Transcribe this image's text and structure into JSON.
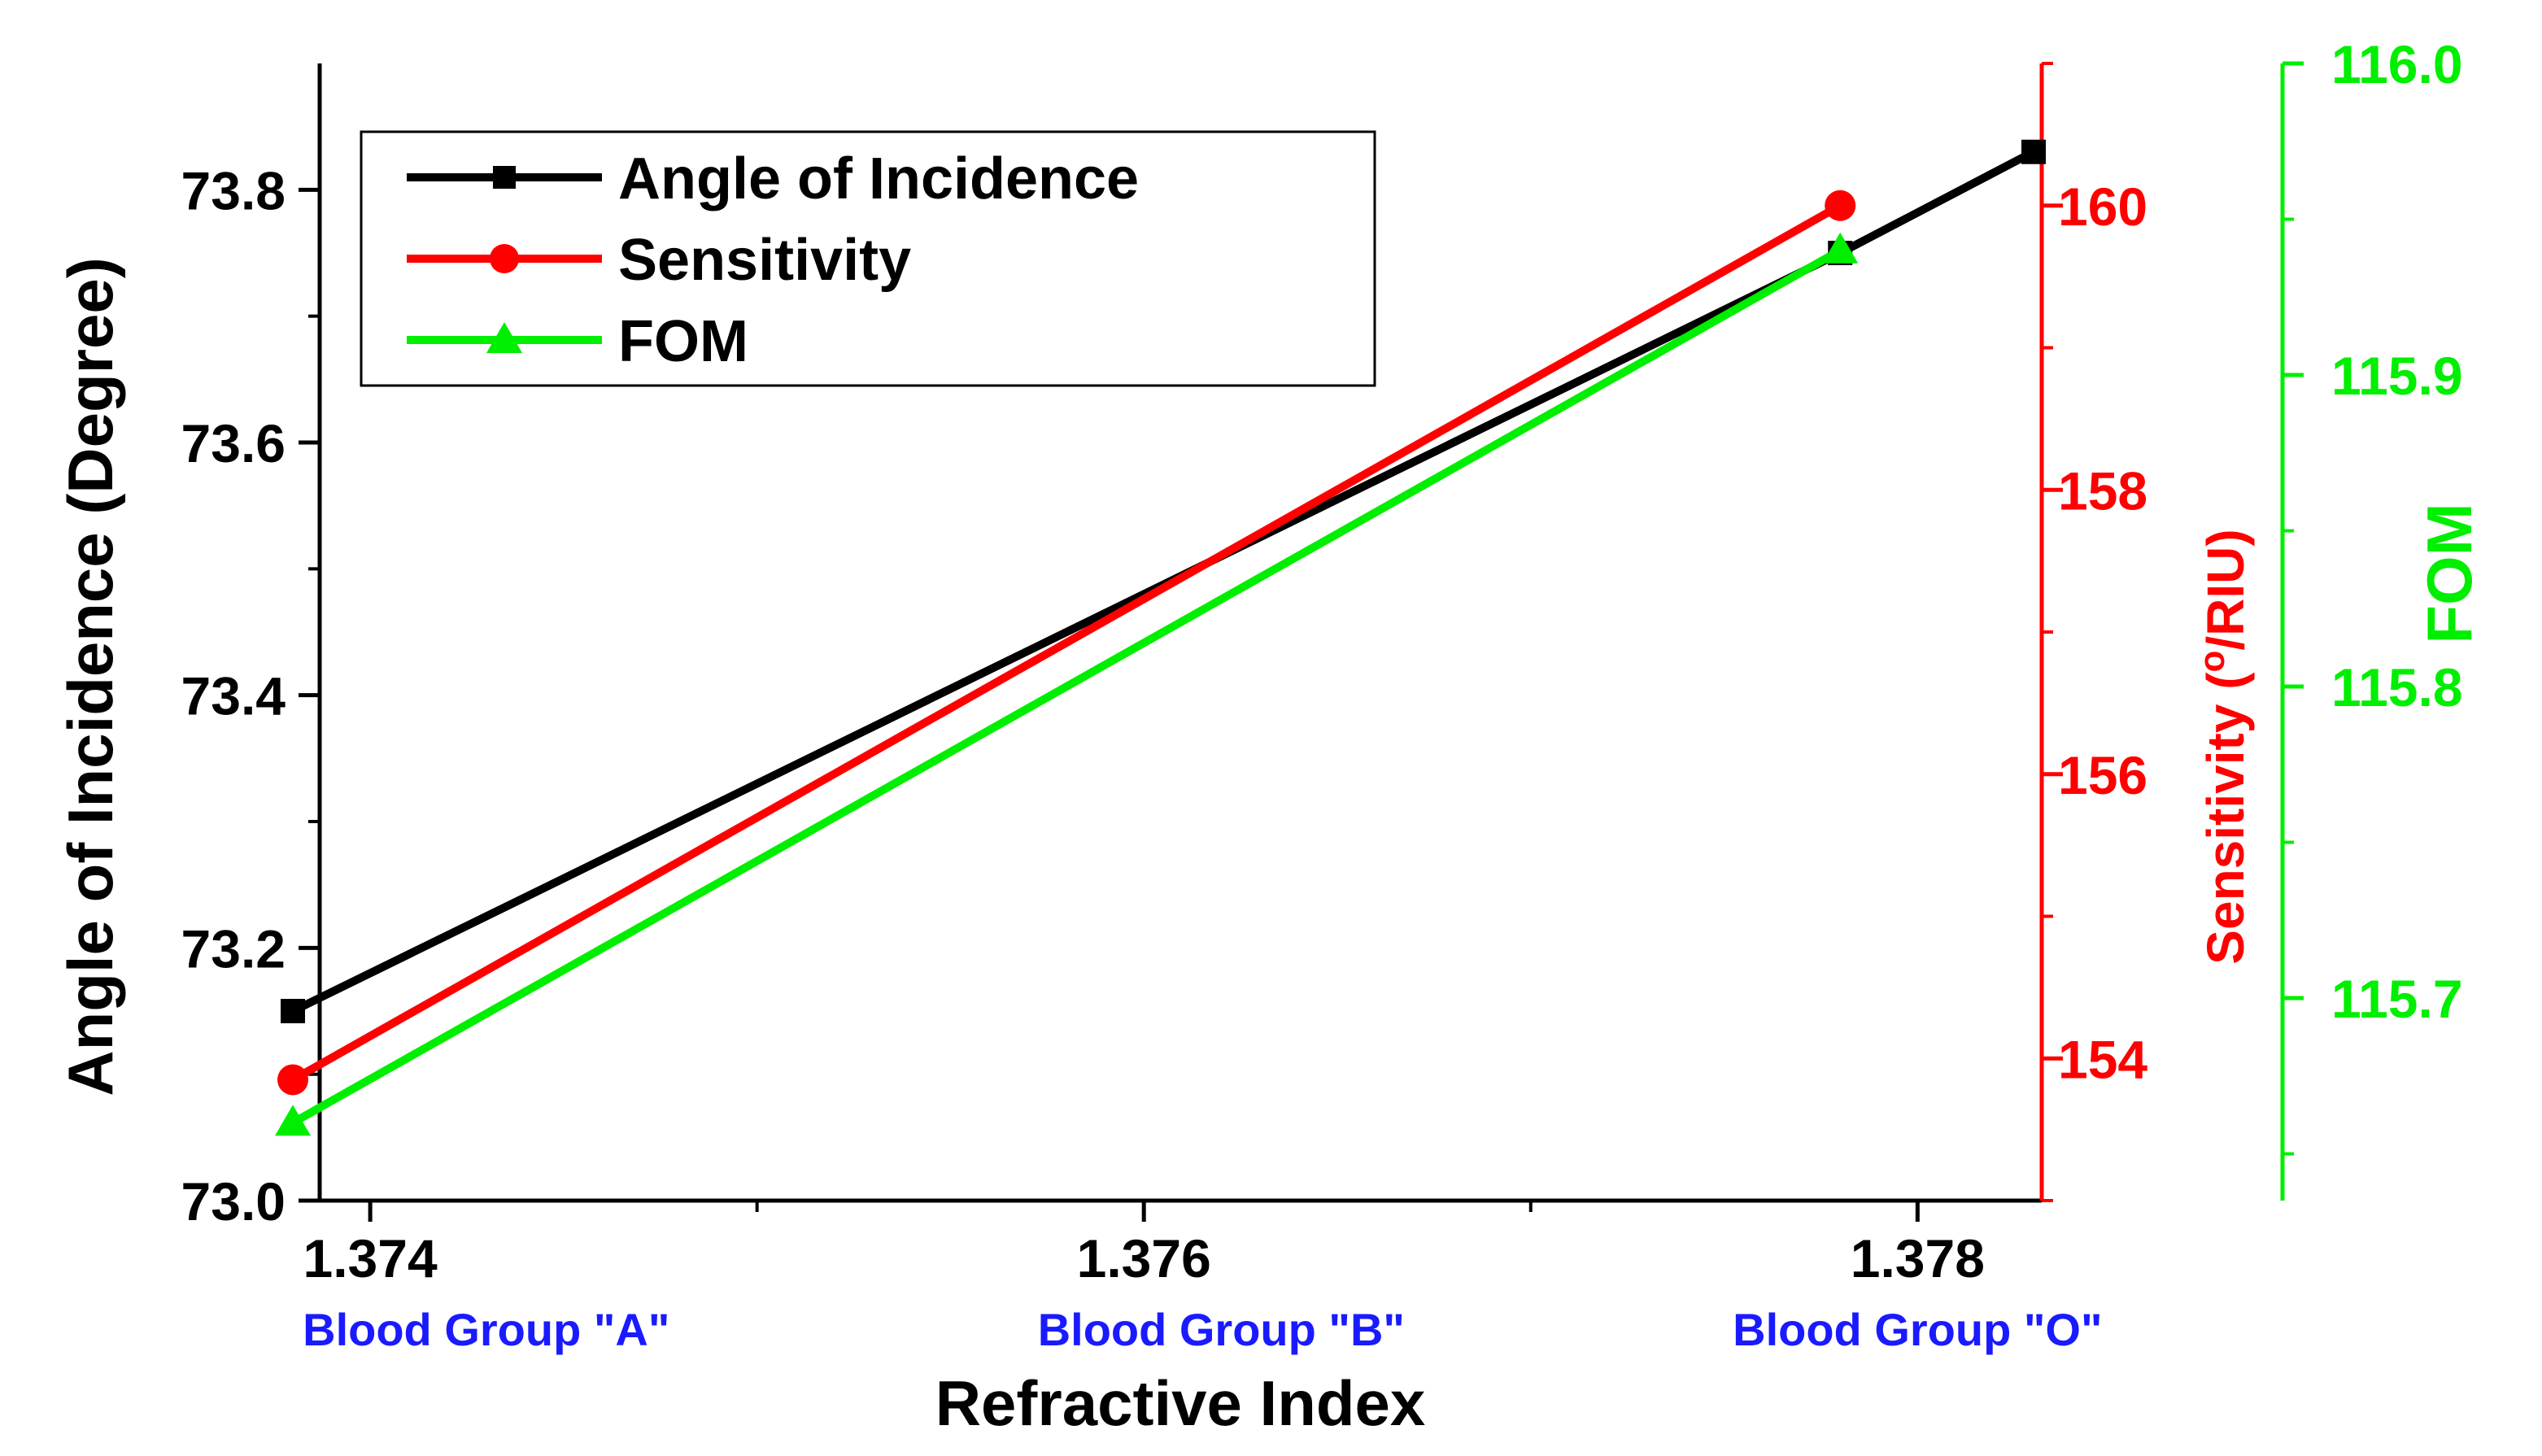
{
  "chart_data": {
    "type": "line",
    "title": "",
    "xlabel": "Refractive Index",
    "xlim": [
      1.3738,
      1.3783
    ],
    "x_major_ticks": [
      1.374,
      1.376,
      1.378
    ],
    "x_minor_ticks": [
      1.375,
      1.377
    ],
    "x_tick_labels": [
      "1.374",
      "1.376",
      "1.378"
    ],
    "category_labels": [
      {
        "x": 1.3743,
        "label": "Blood Group \"A\""
      },
      {
        "x": 1.3762,
        "label": "Blood Group \"B\""
      },
      {
        "x": 1.378,
        "label": "Blood Group \"O\""
      }
    ],
    "axes": {
      "left": {
        "label": "Angle of Incidence (Degree)",
        "ylim": [
          73.0,
          73.9
        ],
        "major_ticks": [
          73.0,
          73.2,
          73.4,
          73.6,
          73.8
        ],
        "minor_ticks": [
          73.1,
          73.3,
          73.5,
          73.7
        ],
        "tick_labels": [
          "73.0",
          "73.2",
          "73.4",
          "73.6",
          "73.8"
        ],
        "color": "#000000"
      },
      "right1": {
        "label_prefix": "Sensitivity (",
        "label_degree": "o",
        "label_suffix": "/RIU)",
        "ylim": [
          153.0,
          161.0
        ],
        "major_ticks": [
          154,
          156,
          158,
          160
        ],
        "minor_ticks": [
          153,
          155,
          157,
          159,
          161
        ],
        "tick_labels": [
          "154",
          "156",
          "158",
          "160"
        ],
        "color": "#ff0000"
      },
      "right2": {
        "label": "FOM",
        "ylim": [
          115.635,
          116.0
        ],
        "major_ticks": [
          115.7,
          115.8,
          115.9,
          116.0
        ],
        "minor_ticks": [
          115.65,
          115.75,
          115.85,
          115.95
        ],
        "tick_labels": [
          "115.7",
          "115.8",
          "115.9",
          "116.0"
        ],
        "color": "#00ee00"
      }
    },
    "series": [
      {
        "name": "Angle of Incidence",
        "axis": "left",
        "color": "#000000",
        "marker": "square",
        "x": [
          1.3738,
          1.3778,
          1.3783
        ],
        "y": [
          73.15,
          73.75,
          73.83
        ]
      },
      {
        "name": "Sensitivity",
        "axis": "right1",
        "color": "#ff0000",
        "marker": "circle",
        "x": [
          1.3738,
          1.3778
        ],
        "y": [
          153.85,
          160.0
        ]
      },
      {
        "name": "FOM",
        "axis": "right2",
        "color": "#00ee00",
        "marker": "triangle",
        "x": [
          1.3738,
          1.3778
        ],
        "y": [
          115.66,
          115.94
        ]
      }
    ],
    "legend": {
      "placement": "top-left",
      "entries": [
        "Angle of Incidence",
        "Sensitivity",
        "FOM"
      ]
    },
    "category_label_color": "#1a1aff"
  }
}
